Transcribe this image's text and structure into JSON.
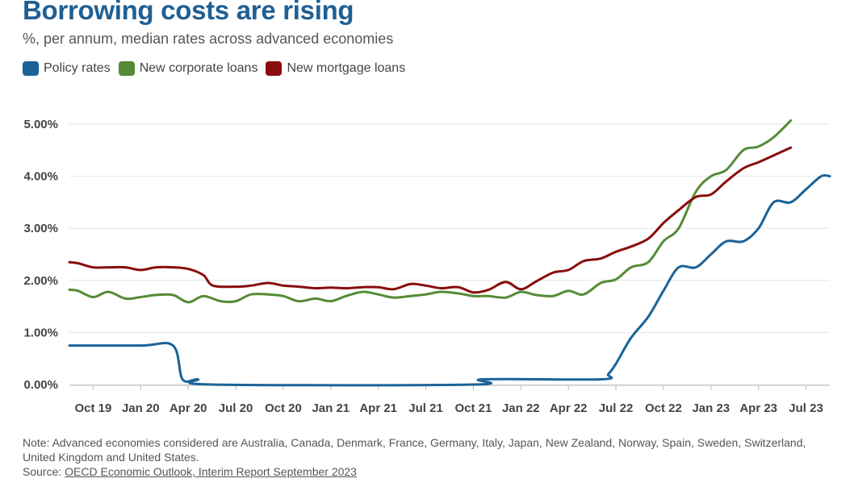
{
  "title": "Borrowing costs are rising",
  "subtitle": "%, per annum, median rates across advanced economies",
  "note": "Note: Advanced economies considered are Australia, Canada, Denmark, France, Germany, Italy, Japan, New Zealand, Norway, Spain, Sweden, Switzerland, United Kingdom and United States.",
  "source_label": "Source: ",
  "source_link": "OECD Economic Outlook, Interim Report September 2023",
  "colors": {
    "policy": "#1a6399",
    "corporate": "#548b36",
    "mortgage": "#8a0c0c",
    "grid": "#e4e4e4",
    "axis_text": "#444444"
  },
  "chart_data": {
    "type": "line",
    "title": "Borrowing costs are rising",
    "ylabel": "%, per annum",
    "ylim": [
      0,
      5
    ],
    "x_range": [
      2019.625,
      2023.625
    ],
    "y_ticks": [
      0,
      1,
      2,
      3,
      4,
      5
    ],
    "y_tick_labels": [
      "0.00%",
      "1.00%",
      "2.00%",
      "3.00%",
      "4.00%",
      "5.00%"
    ],
    "x_ticks": [
      2019.75,
      2020.0,
      2020.25,
      2020.5,
      2020.75,
      2021.0,
      2021.25,
      2021.5,
      2021.75,
      2022.0,
      2022.25,
      2022.5,
      2022.75,
      2023.0,
      2023.25,
      2023.5
    ],
    "x_tick_labels": [
      "Oct 19",
      "Jan 20",
      "Apr 20",
      "Jul 20",
      "Oct 20",
      "Jan 21",
      "Apr 21",
      "Jul 21",
      "Oct 21",
      "Jan 22",
      "Apr 22",
      "Jul 22",
      "Oct 22",
      "Jan 23",
      "Apr 23",
      "Jul 23"
    ],
    "grid": true,
    "legend_position": "top-left",
    "series": [
      {
        "name": "Policy rates",
        "color": "#1a6399",
        "points": [
          [
            2019.625,
            0.75
          ],
          [
            2020.0,
            0.75
          ],
          [
            2020.17,
            0.75
          ],
          [
            2020.22,
            0.1
          ],
          [
            2020.3,
            0.1
          ],
          [
            2020.38,
            0.0
          ],
          [
            2021.75,
            0.0
          ],
          [
            2021.8,
            0.1
          ],
          [
            2022.42,
            0.1
          ],
          [
            2022.46,
            0.2
          ],
          [
            2022.5,
            0.4
          ],
          [
            2022.58,
            0.9
          ],
          [
            2022.67,
            1.3
          ],
          [
            2022.75,
            1.8
          ],
          [
            2022.83,
            2.25
          ],
          [
            2022.92,
            2.25
          ],
          [
            2023.0,
            2.5
          ],
          [
            2023.08,
            2.75
          ],
          [
            2023.17,
            2.75
          ],
          [
            2023.25,
            3.0
          ],
          [
            2023.33,
            3.5
          ],
          [
            2023.42,
            3.5
          ],
          [
            2023.5,
            3.75
          ],
          [
            2023.58,
            4.0
          ],
          [
            2023.625,
            4.0
          ]
        ]
      },
      {
        "name": "New corporate loans",
        "color": "#548b36",
        "points": [
          [
            2019.625,
            1.82
          ],
          [
            2019.67,
            1.8
          ],
          [
            2019.75,
            1.68
          ],
          [
            2019.83,
            1.78
          ],
          [
            2019.92,
            1.65
          ],
          [
            2020.0,
            1.68
          ],
          [
            2020.08,
            1.72
          ],
          [
            2020.17,
            1.72
          ],
          [
            2020.25,
            1.58
          ],
          [
            2020.33,
            1.7
          ],
          [
            2020.42,
            1.6
          ],
          [
            2020.5,
            1.6
          ],
          [
            2020.58,
            1.73
          ],
          [
            2020.67,
            1.73
          ],
          [
            2020.75,
            1.7
          ],
          [
            2020.83,
            1.6
          ],
          [
            2020.92,
            1.65
          ],
          [
            2021.0,
            1.6
          ],
          [
            2021.08,
            1.7
          ],
          [
            2021.17,
            1.78
          ],
          [
            2021.25,
            1.73
          ],
          [
            2021.33,
            1.67
          ],
          [
            2021.42,
            1.7
          ],
          [
            2021.5,
            1.73
          ],
          [
            2021.58,
            1.78
          ],
          [
            2021.67,
            1.75
          ],
          [
            2021.75,
            1.7
          ],
          [
            2021.83,
            1.7
          ],
          [
            2021.92,
            1.67
          ],
          [
            2022.0,
            1.78
          ],
          [
            2022.08,
            1.72
          ],
          [
            2022.17,
            1.7
          ],
          [
            2022.25,
            1.8
          ],
          [
            2022.33,
            1.73
          ],
          [
            2022.42,
            1.95
          ],
          [
            2022.5,
            2.02
          ],
          [
            2022.58,
            2.25
          ],
          [
            2022.67,
            2.35
          ],
          [
            2022.75,
            2.75
          ],
          [
            2022.83,
            3.0
          ],
          [
            2022.92,
            3.7
          ],
          [
            2023.0,
            4.0
          ],
          [
            2023.08,
            4.12
          ],
          [
            2023.17,
            4.5
          ],
          [
            2023.25,
            4.57
          ],
          [
            2023.33,
            4.75
          ],
          [
            2023.42,
            5.07
          ]
        ]
      },
      {
        "name": "New mortgage loans",
        "color": "#8a0c0c",
        "points": [
          [
            2019.625,
            2.35
          ],
          [
            2019.67,
            2.33
          ],
          [
            2019.75,
            2.25
          ],
          [
            2019.83,
            2.25
          ],
          [
            2019.92,
            2.25
          ],
          [
            2020.0,
            2.2
          ],
          [
            2020.08,
            2.25
          ],
          [
            2020.17,
            2.25
          ],
          [
            2020.25,
            2.22
          ],
          [
            2020.33,
            2.1
          ],
          [
            2020.38,
            1.9
          ],
          [
            2020.5,
            1.88
          ],
          [
            2020.58,
            1.9
          ],
          [
            2020.67,
            1.95
          ],
          [
            2020.75,
            1.9
          ],
          [
            2020.83,
            1.88
          ],
          [
            2020.92,
            1.85
          ],
          [
            2021.0,
            1.86
          ],
          [
            2021.08,
            1.85
          ],
          [
            2021.17,
            1.87
          ],
          [
            2021.25,
            1.87
          ],
          [
            2021.33,
            1.83
          ],
          [
            2021.42,
            1.93
          ],
          [
            2021.5,
            1.9
          ],
          [
            2021.58,
            1.85
          ],
          [
            2021.67,
            1.87
          ],
          [
            2021.75,
            1.77
          ],
          [
            2021.83,
            1.82
          ],
          [
            2021.92,
            1.97
          ],
          [
            2022.0,
            1.83
          ],
          [
            2022.08,
            1.98
          ],
          [
            2022.17,
            2.15
          ],
          [
            2022.25,
            2.2
          ],
          [
            2022.33,
            2.37
          ],
          [
            2022.42,
            2.42
          ],
          [
            2022.5,
            2.55
          ],
          [
            2022.58,
            2.65
          ],
          [
            2022.67,
            2.8
          ],
          [
            2022.75,
            3.1
          ],
          [
            2022.83,
            3.35
          ],
          [
            2022.92,
            3.6
          ],
          [
            2023.0,
            3.65
          ],
          [
            2023.08,
            3.9
          ],
          [
            2023.17,
            4.15
          ],
          [
            2023.25,
            4.27
          ],
          [
            2023.33,
            4.4
          ],
          [
            2023.42,
            4.55
          ]
        ]
      }
    ]
  }
}
